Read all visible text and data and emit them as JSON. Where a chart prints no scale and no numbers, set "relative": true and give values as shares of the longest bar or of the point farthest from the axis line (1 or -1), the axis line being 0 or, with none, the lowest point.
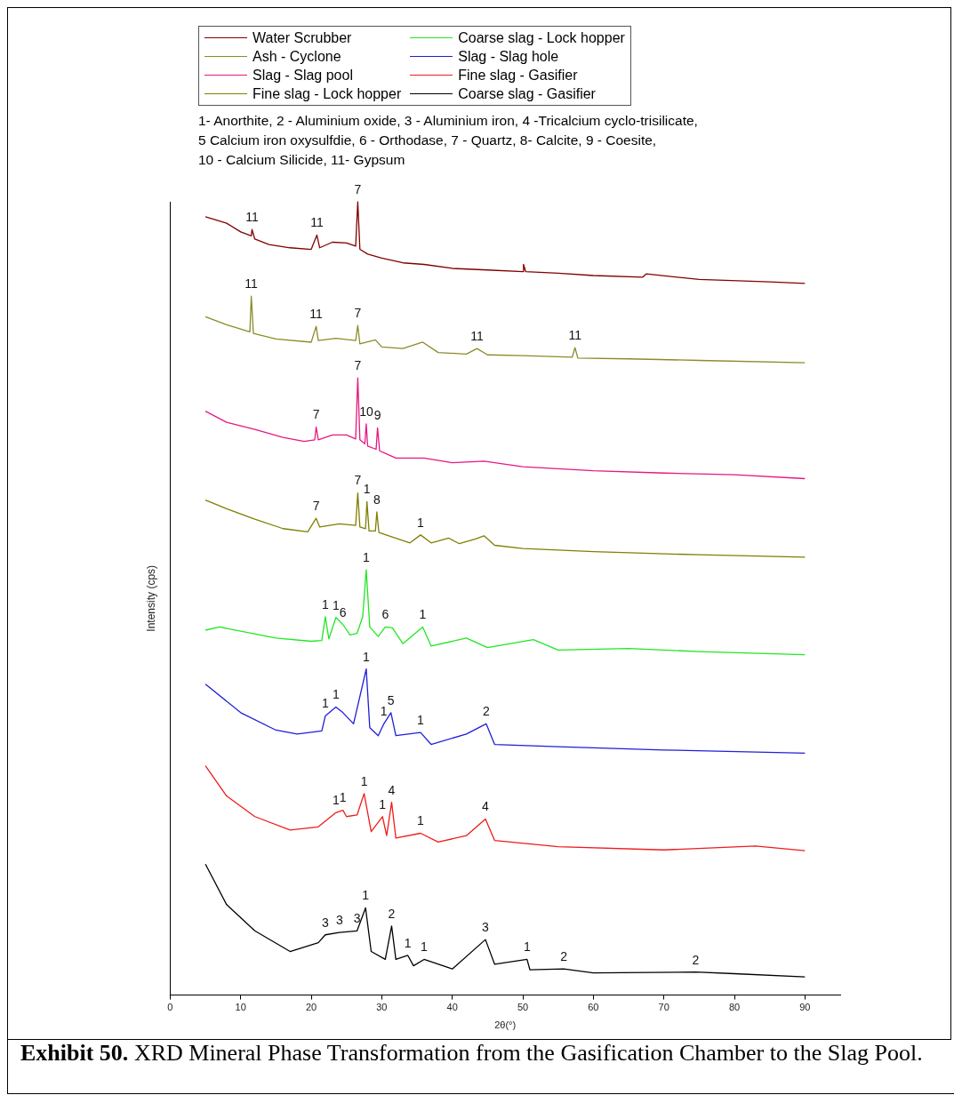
{
  "chart_data": {
    "type": "line",
    "xlabel": "2θ(°)",
    "ylabel": "Intensity (cps)",
    "relative": true,
    "xlim": [
      0,
      95
    ],
    "xticks": [
      0,
      10,
      20,
      30,
      40,
      50,
      60,
      70,
      80,
      90
    ],
    "legend": "top left",
    "marker": "none",
    "line_style": "solid",
    "grid": false,
    "series": [
      {
        "name": "Water Scrubber",
        "color": "#800000",
        "x": [
          5,
          8,
          10,
          11.5,
          11.6,
          12,
          14,
          17,
          20,
          20.8,
          21.2,
          23,
          25,
          26.3,
          26.6,
          26.9,
          28,
          30,
          33,
          36,
          40,
          45,
          50,
          50.1,
          50.4,
          55,
          60,
          67,
          67.5,
          75,
          85,
          90
        ],
        "values": [
          0.981,
          0.973,
          0.962,
          0.957,
          0.965,
          0.953,
          0.946,
          0.942,
          0.94,
          0.958,
          0.942,
          0.949,
          0.948,
          0.944,
          1.0,
          0.94,
          0.934,
          0.929,
          0.923,
          0.921,
          0.916,
          0.914,
          0.912,
          0.921,
          0.912,
          0.91,
          0.907,
          0.905,
          0.909,
          0.902,
          0.899,
          0.897
        ]
      },
      {
        "name": "Ash - Cyclone",
        "color": "#8b8b2a",
        "x": [
          5,
          8,
          11.3,
          11.5,
          11.8,
          15,
          20,
          20.7,
          21,
          23.5,
          26.3,
          26.6,
          26.9,
          29.1,
          30,
          33,
          35.8,
          38,
          42,
          43.5,
          45,
          50,
          57,
          57.4,
          57.8,
          65,
          75,
          90
        ],
        "values": [
          0.855,
          0.845,
          0.836,
          0.881,
          0.834,
          0.827,
          0.823,
          0.843,
          0.825,
          0.828,
          0.825,
          0.844,
          0.821,
          0.826,
          0.817,
          0.815,
          0.823,
          0.81,
          0.808,
          0.815,
          0.807,
          0.806,
          0.804,
          0.816,
          0.803,
          0.802,
          0.8,
          0.797
        ]
      },
      {
        "name": "Slag - Slag pool",
        "color": "#e8177f",
        "x": [
          5,
          8,
          12,
          16,
          19,
          20.5,
          20.7,
          21,
          23,
          25,
          26.3,
          26.6,
          26.9,
          27.6,
          27.8,
          28,
          29.2,
          29.4,
          29.7,
          32,
          36,
          40,
          44.5,
          50,
          60,
          70,
          80,
          90
        ],
        "values": [
          0.736,
          0.722,
          0.713,
          0.703,
          0.698,
          0.7,
          0.716,
          0.7,
          0.706,
          0.706,
          0.701,
          0.778,
          0.7,
          0.695,
          0.72,
          0.692,
          0.688,
          0.715,
          0.686,
          0.677,
          0.677,
          0.671,
          0.673,
          0.666,
          0.661,
          0.658,
          0.656,
          0.651
        ]
      },
      {
        "name": "Fine slag - Lock hopper",
        "color": "#7f7f00",
        "x": [
          5,
          8,
          12,
          16,
          19.5,
          20.7,
          21.2,
          24,
          26.3,
          26.6,
          26.9,
          27.7,
          27.9,
          28.2,
          29.1,
          29.3,
          29.6,
          31,
          34,
          35.5,
          37,
          39.5,
          41,
          43.3,
          44.5,
          46,
          50,
          60,
          75,
          90
        ],
        "values": [
          0.624,
          0.613,
          0.6,
          0.588,
          0.584,
          0.601,
          0.59,
          0.594,
          0.592,
          0.633,
          0.59,
          0.588,
          0.622,
          0.585,
          0.585,
          0.609,
          0.583,
          0.579,
          0.57,
          0.58,
          0.57,
          0.576,
          0.569,
          0.575,
          0.579,
          0.567,
          0.563,
          0.559,
          0.555,
          0.552
        ]
      },
      {
        "name": "Coarse slag - Lock hopper",
        "color": "#22e622",
        "x": [
          5,
          7,
          15,
          20,
          21.5,
          22,
          22.5,
          23.5,
          24.5,
          25.5,
          26.5,
          27.3,
          27.8,
          28.3,
          29.5,
          30.5,
          31.5,
          33,
          35.8,
          37,
          42,
          45,
          51.5,
          55,
          65,
          75,
          90
        ],
        "values": [
          0.46,
          0.464,
          0.45,
          0.446,
          0.447,
          0.477,
          0.449,
          0.476,
          0.467,
          0.454,
          0.456,
          0.477,
          0.536,
          0.464,
          0.452,
          0.464,
          0.463,
          0.443,
          0.464,
          0.44,
          0.45,
          0.438,
          0.448,
          0.435,
          0.437,
          0.433,
          0.429
        ]
      },
      {
        "name": "Slag - Slag hole",
        "color": "#1f1fd6",
        "x": [
          5,
          10,
          15,
          18,
          21.5,
          22,
          23.5,
          24.5,
          26,
          27.8,
          28.3,
          29.5,
          30.3,
          31.3,
          32,
          35.5,
          37,
          42,
          44.8,
          46,
          55,
          70,
          90
        ],
        "values": [
          0.392,
          0.356,
          0.334,
          0.329,
          0.333,
          0.352,
          0.363,
          0.356,
          0.342,
          0.411,
          0.337,
          0.327,
          0.342,
          0.356,
          0.327,
          0.331,
          0.316,
          0.329,
          0.342,
          0.316,
          0.313,
          0.309,
          0.305
        ]
      },
      {
        "name": "Fine slag - Gasifier",
        "color": "#ee1c1c",
        "x": [
          5,
          8,
          12,
          17,
          21,
          23.5,
          24.5,
          25,
          26.5,
          27.5,
          28.5,
          30.1,
          30.7,
          31.4,
          32,
          35.5,
          38,
          42,
          44.7,
          46,
          55,
          70,
          83,
          90
        ],
        "values": [
          0.289,
          0.251,
          0.225,
          0.208,
          0.212,
          0.23,
          0.233,
          0.225,
          0.227,
          0.254,
          0.206,
          0.225,
          0.201,
          0.243,
          0.198,
          0.204,
          0.193,
          0.201,
          0.222,
          0.195,
          0.187,
          0.183,
          0.188,
          0.182
        ]
      },
      {
        "name": "Coarse slag - Gasifier",
        "color": "#000000",
        "x": [
          5,
          8,
          12,
          17,
          21,
          22,
          24,
          26.5,
          27.7,
          28.5,
          30.5,
          31.4,
          32,
          33.7,
          34.5,
          36,
          40,
          44.7,
          46,
          50.6,
          51,
          55.8,
          60,
          74.5,
          80,
          90
        ],
        "values": [
          0.165,
          0.114,
          0.081,
          0.055,
          0.066,
          0.076,
          0.079,
          0.081,
          0.11,
          0.055,
          0.045,
          0.087,
          0.045,
          0.05,
          0.037,
          0.045,
          0.033,
          0.07,
          0.039,
          0.045,
          0.032,
          0.033,
          0.028,
          0.029,
          0.027,
          0.023
        ]
      }
    ],
    "annotations": [
      "1- Anorthite, 2 - Aluminium oxide, 3 - Aluminium iron,  4 -Tricalcium cyclo-trisilicate,",
      "5 Calcium iron oxysulfdie, 6 - Orthodase, 7 - Quartz, 8- Calcite, 9 - Coesite,",
      "10 - Calcium Silicide, 11- Gypsum",
      "Exhibit 50.",
      "XRD Mineral Phase Transformation from the Gasification Chamber to the Slag Pool.",
      {
        "text": "11",
        "x": 11.6,
        "y": 0.965
      },
      {
        "text": "11",
        "x": 20.8,
        "y": 0.958
      },
      {
        "text": "7",
        "x": 26.6,
        "y": 1.0
      },
      {
        "text": "11",
        "x": 11.5,
        "y": 0.881
      },
      {
        "text": "11",
        "x": 20.7,
        "y": 0.843
      },
      {
        "text": "7",
        "x": 26.6,
        "y": 0.844
      },
      {
        "text": "11",
        "x": 43.5,
        "y": 0.815
      },
      {
        "text": "11",
        "x": 57.4,
        "y": 0.816
      },
      {
        "text": "7",
        "x": 20.7,
        "y": 0.716
      },
      {
        "text": "7",
        "x": 26.6,
        "y": 0.778
      },
      {
        "text": "10",
        "x": 27.8,
        "y": 0.72
      },
      {
        "text": "9",
        "x": 29.4,
        "y": 0.715
      },
      {
        "text": "7",
        "x": 20.7,
        "y": 0.601
      },
      {
        "text": "7",
        "x": 26.6,
        "y": 0.633
      },
      {
        "text": "1",
        "x": 27.9,
        "y": 0.622
      },
      {
        "text": "8",
        "x": 29.3,
        "y": 0.609
      },
      {
        "text": "1",
        "x": 35.5,
        "y": 0.58
      },
      {
        "text": "1",
        "x": 27.8,
        "y": 0.536
      },
      {
        "text": "1",
        "x": 22,
        "y": 0.477
      },
      {
        "text": "1",
        "x": 23.5,
        "y": 0.476
      },
      {
        "text": "6",
        "x": 24.5,
        "y": 0.467
      },
      {
        "text": "6",
        "x": 30.5,
        "y": 0.464
      },
      {
        "text": "1",
        "x": 35.8,
        "y": 0.464
      },
      {
        "text": "1",
        "x": 27.8,
        "y": 0.411
      },
      {
        "text": "1",
        "x": 22,
        "y": 0.352
      },
      {
        "text": "1",
        "x": 23.5,
        "y": 0.363
      },
      {
        "text": "5",
        "x": 31.3,
        "y": 0.356
      },
      {
        "text": "1",
        "x": 30.3,
        "y": 0.342
      },
      {
        "text": "1",
        "x": 35.5,
        "y": 0.331
      },
      {
        "text": "2",
        "x": 44.8,
        "y": 0.342
      },
      {
        "text": "1",
        "x": 23.5,
        "y": 0.23
      },
      {
        "text": "1",
        "x": 24.5,
        "y": 0.233
      },
      {
        "text": "1",
        "x": 27.5,
        "y": 0.254
      },
      {
        "text": "4",
        "x": 31.4,
        "y": 0.243
      },
      {
        "text": "1",
        "x": 30.1,
        "y": 0.225
      },
      {
        "text": "1",
        "x": 35.5,
        "y": 0.204
      },
      {
        "text": "4",
        "x": 44.7,
        "y": 0.222
      },
      {
        "text": "3",
        "x": 22,
        "y": 0.076
      },
      {
        "text": "3",
        "x": 24,
        "y": 0.079
      },
      {
        "text": "3",
        "x": 26.5,
        "y": 0.081
      },
      {
        "text": "1",
        "x": 27.7,
        "y": 0.11
      },
      {
        "text": "2",
        "x": 31.4,
        "y": 0.087
      },
      {
        "text": "1",
        "x": 33.7,
        "y": 0.05
      },
      {
        "text": "1",
        "x": 36,
        "y": 0.045
      },
      {
        "text": "3",
        "x": 44.7,
        "y": 0.07
      },
      {
        "text": "1",
        "x": 50.6,
        "y": 0.045
      },
      {
        "text": "2",
        "x": 55.8,
        "y": 0.033
      },
      {
        "text": "2",
        "x": 74.5,
        "y": 0.029
      }
    ]
  }
}
